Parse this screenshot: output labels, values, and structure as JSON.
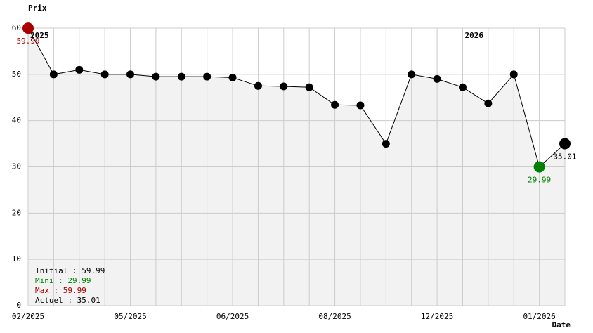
{
  "chart_data": {
    "type": "line",
    "y_axis_title": "Prix",
    "x_axis_title": "Date",
    "categories": [
      "02/2025",
      null,
      null,
      null,
      "05/2025",
      null,
      null,
      null,
      "06/2025",
      null,
      null,
      null,
      "08/2025",
      null,
      null,
      null,
      "12/2025",
      null,
      null,
      null,
      "01/2026",
      null
    ],
    "year_markers": [
      {
        "label": "2025",
        "category": 0
      },
      {
        "label": "2026",
        "category": 17
      }
    ],
    "series": [
      {
        "name": "Prix",
        "color": "#000000",
        "values": [
          59.99,
          49.99,
          50.99,
          49.99,
          49.99,
          49.5,
          49.5,
          49.5,
          49.3,
          47.5,
          47.4,
          47.2,
          43.4,
          43.3,
          34.99,
          49.99,
          49.0,
          47.2,
          43.7,
          49.99,
          29.99,
          35.01
        ],
        "value_labels": [
          "59.99",
          null,
          null,
          null,
          null,
          null,
          null,
          null,
          null,
          null,
          null,
          null,
          null,
          null,
          null,
          null,
          null,
          null,
          null,
          null,
          "29.99",
          "35.01"
        ],
        "marker_colors": [
          "#aa0000",
          "#000000",
          "#000000",
          "#000000",
          "#000000",
          "#000000",
          "#000000",
          "#000000",
          "#000000",
          "#000000",
          "#000000",
          "#000000",
          "#000000",
          "#000000",
          "#000000",
          "#000000",
          "#000000",
          "#000000",
          "#000000",
          "#000000",
          "#008000",
          "#000000"
        ],
        "big_markers": [
          0,
          20,
          21
        ]
      }
    ],
    "ylim": [
      0,
      60
    ],
    "yticks": [
      0,
      10,
      20,
      30,
      40,
      50,
      60
    ],
    "grid": true,
    "area_color": "#f2f2f2",
    "summary": [
      {
        "text": "Initial : 59.99",
        "color": "#000000"
      },
      {
        "text": "Mini : 29.99",
        "color": "#008000"
      },
      {
        "text": "Max : 59.99",
        "color": "#aa0000"
      },
      {
        "text": "Actuel : 35.01",
        "color": "#000000"
      }
    ]
  }
}
